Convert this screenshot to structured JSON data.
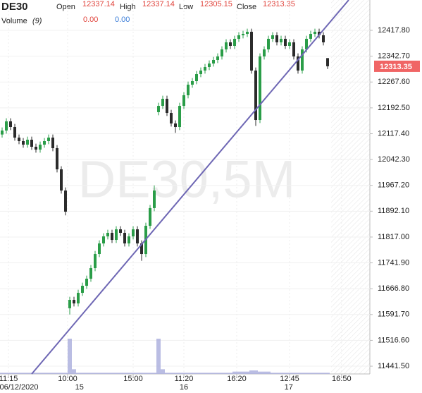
{
  "chart_data": {
    "type": "candlestick",
    "title": "DE30",
    "watermark": "DE30,5M",
    "header": {
      "open_label": "Open",
      "high_label": "High",
      "low_label": "Low",
      "close_label": "Close",
      "volume_label": "Volume",
      "volume_period": "(9)",
      "volume_values": [
        "0.00",
        "0.00"
      ],
      "value_color": "#e0443c",
      "volume_colors": [
        "#e0443c",
        "#3b7dd8"
      ]
    },
    "candles": {
      "open": [
        12115,
        12126.6,
        12153.2,
        12136.8,
        12106.0,
        12095.8,
        12085.6,
        12099.9,
        12079.4,
        12071.2,
        12085.6,
        12095.8,
        12106.0,
        12075.3,
        12013.8,
        11952.2,
        11610.0,
        11634.3,
        11624.0,
        11654.8,
        11675.3,
        11695.9,
        11726.6,
        11767.6,
        11798.4,
        11818.9,
        11829.2,
        11808.6,
        11839.4,
        11829.2,
        11798.4,
        11818.9,
        11839.4,
        11798.4,
        11767.6,
        11849.7,
        11901.1,
        12180.0,
        12198.3,
        12218.8,
        12177.8,
        12147.1,
        12136.8,
        12198.3,
        12229.1,
        12259.9,
        12270.1,
        12290.6,
        12300.9,
        12311.1,
        12321.4,
        12331.7,
        12341.9,
        12362.4,
        12382.9,
        12372.7,
        12393.2,
        12403.4,
        12407.5,
        12413.7,
        12300.9,
        12157.3,
        12341.9,
        12362.4,
        12393.2,
        12403.4,
        12382.9,
        12393.2,
        12372.7,
        12382.9,
        12341.9,
        12300.9,
        12362.4,
        12393.2,
        12407.5,
        12413.7,
        12403.4,
        12337.14
      ],
      "high": [
        12135.6,
        12162.2,
        12162.2,
        12145.8,
        12115,
        12104.8,
        12108.9,
        12108.9,
        12088.4,
        12094.6,
        12104.8,
        12115,
        12115,
        12084.3,
        12022.8,
        11961.2,
        11643.3,
        11643.3,
        11663.8,
        11684.3,
        11704.9,
        11735.6,
        11776.6,
        11807.4,
        11827.9,
        11838.2,
        11838.2,
        11848.4,
        11848.4,
        11838.2,
        11827.9,
        11848.4,
        11848.4,
        11807.4,
        11858.7,
        11910.1,
        11967,
        12207.3,
        12227.8,
        12227.8,
        12186.8,
        12156.1,
        12207.3,
        12238.1,
        12268.9,
        12279.1,
        12299.6,
        12309.9,
        12320.1,
        12330.4,
        12340.7,
        12350.9,
        12371.4,
        12391.9,
        12391.9,
        12402.2,
        12412.4,
        12416.5,
        12422.7,
        12422.7,
        12309.9,
        12350.9,
        12371.4,
        12402.2,
        12412.4,
        12412.4,
        12402.2,
        12402.2,
        12391.9,
        12391.9,
        12350.9,
        12371.4,
        12402.2,
        12416.5,
        12422.7,
        12422.7,
        12412.4,
        12337.14
      ],
      "low": [
        12106,
        12117.6,
        12127.8,
        12097,
        12086.8,
        12076.6,
        12076.6,
        12070.4,
        12062.2,
        12062.2,
        12076.6,
        12086.8,
        12066.3,
        12004.8,
        11943.2,
        11880,
        11591.7,
        11615,
        11615,
        11645.8,
        11666.3,
        11686.9,
        11717.6,
        11758.6,
        11789.4,
        11809.9,
        11799.6,
        11799.6,
        11820.2,
        11789.4,
        11789.4,
        11809.9,
        11789.4,
        11748,
        11758.6,
        11840.7,
        11892.1,
        12171,
        12189.3,
        12168.8,
        12138.1,
        12120,
        12127.8,
        12189.3,
        12220.1,
        12250.9,
        12261.1,
        12281.6,
        12291.9,
        12302.1,
        12312.4,
        12322.7,
        12332.9,
        12353.4,
        12363.7,
        12363.7,
        12384.2,
        12394.4,
        12398.5,
        12291.9,
        12140,
        12148.3,
        12332.9,
        12353.4,
        12384.2,
        12373.9,
        12373.9,
        12363.7,
        12363.7,
        12332.9,
        12291.9,
        12291.9,
        12353.4,
        12384.2,
        12398.5,
        12394.4,
        12373.9,
        12305.15
      ],
      "close": [
        12126.6,
        12153.2,
        12136.8,
        12106.0,
        12095.8,
        12085.6,
        12099.9,
        12079.4,
        12071.2,
        12085.6,
        12095.8,
        12106.0,
        12075.3,
        12013.8,
        11952.2,
        11890.7,
        11634.3,
        11624.0,
        11654.8,
        11675.3,
        11695.9,
        11726.6,
        11767.6,
        11798.4,
        11818.9,
        11829.2,
        11808.6,
        11839.4,
        11829.2,
        11798.4,
        11818.9,
        11839.4,
        11798.4,
        11767.6,
        11849.7,
        11901.1,
        11952.2,
        12198.3,
        12218.8,
        12177.8,
        12147.1,
        12136.8,
        12198.3,
        12229.1,
        12259.9,
        12270.1,
        12290.6,
        12300.9,
        12311.1,
        12321.4,
        12331.7,
        12341.9,
        12362.4,
        12382.9,
        12372.7,
        12393.2,
        12403.4,
        12407.5,
        12413.7,
        12300.9,
        12157.3,
        12341.9,
        12362.4,
        12393.2,
        12403.4,
        12382.9,
        12393.2,
        12372.7,
        12382.9,
        12341.9,
        12300.9,
        12362.4,
        12393.2,
        12407.5,
        12413.7,
        12403.4,
        12382.9,
        12313.35
      ],
      "volume": [
        1,
        1,
        1,
        1,
        1,
        1,
        1,
        1,
        1,
        1,
        1,
        1,
        1,
        1,
        1,
        1,
        30,
        4,
        1,
        1,
        1,
        1,
        1,
        1,
        1,
        1,
        1,
        1,
        1,
        1,
        1,
        1,
        1,
        1,
        1,
        1,
        1,
        30,
        4,
        1,
        1,
        1,
        1,
        1,
        1,
        1,
        1,
        1,
        1,
        1,
        1,
        1,
        1,
        1,
        1,
        2,
        2,
        2,
        2,
        3,
        3,
        2,
        2,
        2,
        1,
        1,
        1,
        1,
        1,
        1,
        1,
        1,
        1,
        1,
        1,
        1,
        1,
        1
      ]
    },
    "up_color": "#2a9d48",
    "down_color": "#2b2b2b",
    "volume_color": "#a9acdc",
    "last_price_color": "#f06565",
    "trendline": {
      "x": [
        7,
        82
      ],
      "y": [
        11419,
        12506
      ],
      "color": "#6e67b4"
    },
    "xlim": [
      -0.5,
      87
    ],
    "ylim": [
      11419,
      12506
    ],
    "yticks": [
      {
        "value": 12417.8,
        "label": "12417.80"
      },
      {
        "value": 12342.7,
        "label": "12342.70"
      },
      {
        "value": 12267.6,
        "label": "12267.60"
      },
      {
        "value": 12192.5,
        "label": "12192.50"
      },
      {
        "value": 12117.4,
        "label": "12117.40"
      },
      {
        "value": 12042.3,
        "label": "12042.30"
      },
      {
        "value": 11967.2,
        "label": "11967.20"
      },
      {
        "value": 11892.1,
        "label": "11892.10"
      },
      {
        "value": 11817,
        "label": "11817.00"
      },
      {
        "value": 11741.9,
        "label": "11741.90"
      },
      {
        "value": 11666.8,
        "label": "11666.80"
      },
      {
        "value": 11591.7,
        "label": "11591.70"
      },
      {
        "value": 11516.6,
        "label": "11516.60"
      },
      {
        "value": 11441.5,
        "label": "11441.50"
      }
    ],
    "xticks": [
      {
        "value": 1.5,
        "label": "11:15"
      },
      {
        "value": 15.5,
        "label": "10:00"
      },
      {
        "value": 31,
        "label": "15:00"
      },
      {
        "value": 43,
        "label": "11:20"
      },
      {
        "value": 55.5,
        "label": "16:20"
      },
      {
        "value": 68,
        "label": "12:45"
      },
      {
        "value": 80.3,
        "label": "16:50"
      }
    ],
    "xdates": [
      {
        "value": 4,
        "label": "06/12/2020"
      },
      {
        "value": 18.3,
        "label": "15"
      },
      {
        "value": 43,
        "label": "16"
      },
      {
        "value": 67.8,
        "label": "17"
      }
    ],
    "grid": true
  }
}
